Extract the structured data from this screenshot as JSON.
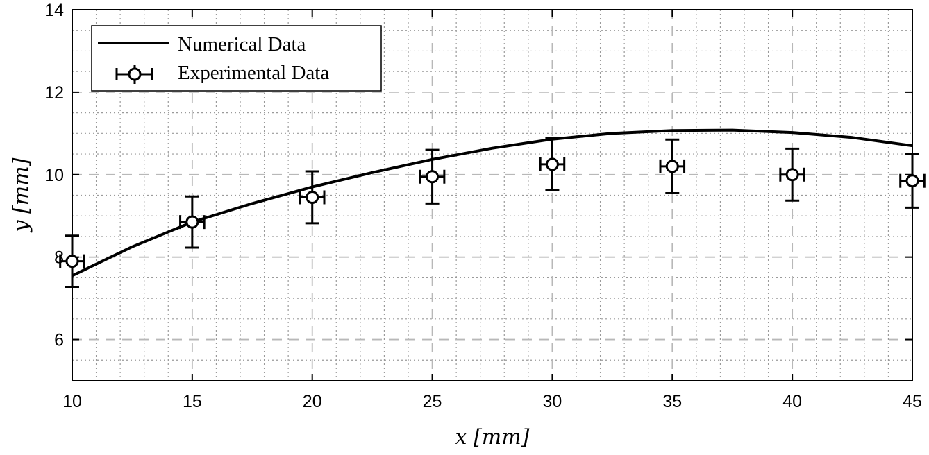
{
  "chart_data": {
    "type": "line",
    "title": "",
    "xlabel": "x [mm]",
    "ylabel": "y [mm]",
    "xlim": [
      10,
      45
    ],
    "ylim": [
      5,
      14
    ],
    "xticks": [
      10,
      15,
      20,
      25,
      30,
      35,
      40,
      45
    ],
    "yticks": [
      6,
      8,
      10,
      12,
      14
    ],
    "xtick_labels": [
      "10",
      "15",
      "20",
      "25",
      "30",
      "35",
      "40",
      "45"
    ],
    "ytick_labels": [
      "6",
      "8",
      "10",
      "12",
      "14"
    ],
    "grid": true,
    "minor_grid": true,
    "legend_position": "top-left",
    "series": [
      {
        "name": "Numerical Data",
        "style": "solid-line",
        "x": [
          10,
          12.5,
          15,
          17.5,
          20,
          22.5,
          25,
          27.5,
          30,
          32.5,
          35,
          37.5,
          40,
          42.5,
          45
        ],
        "y": [
          7.55,
          8.25,
          8.85,
          9.3,
          9.7,
          10.05,
          10.37,
          10.64,
          10.86,
          11.0,
          11.07,
          11.08,
          11.02,
          10.9,
          10.7
        ]
      },
      {
        "name": "Experimental Data",
        "style": "circle-markers-with-errorbars",
        "x": [
          10,
          15,
          20,
          25,
          30,
          35,
          40,
          45
        ],
        "y": [
          7.9,
          8.85,
          9.45,
          9.95,
          10.25,
          10.2,
          10.0,
          9.85
        ],
        "y_err": [
          0.62,
          0.62,
          0.63,
          0.65,
          0.63,
          0.65,
          0.63,
          0.65
        ],
        "x_err": [
          0.5,
          0.5,
          0.5,
          0.5,
          0.5,
          0.5,
          0.5,
          0.5
        ]
      }
    ]
  }
}
